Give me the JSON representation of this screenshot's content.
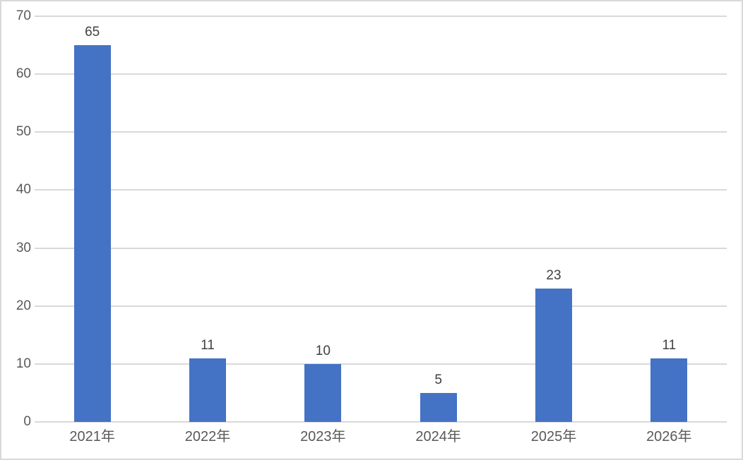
{
  "chart_data": {
    "type": "bar",
    "categories": [
      "2021年",
      "2022年",
      "2023年",
      "2024年",
      "2025年",
      "2026年"
    ],
    "values": [
      65,
      11,
      10,
      5,
      23,
      11
    ],
    "data_labels": [
      "65",
      "11",
      "10",
      "5",
      "23",
      "11"
    ],
    "title": "",
    "xlabel": "",
    "ylabel": "",
    "ylim": [
      0,
      70
    ],
    "yticks": [
      0,
      10,
      20,
      30,
      40,
      50,
      60,
      70
    ],
    "grid": true,
    "legend": false,
    "data_labels_visible": true,
    "colors": {
      "bar": "#4472C4",
      "gridline": "#D9D9D9",
      "axis_label": "#595959",
      "data_label": "#404040",
      "background": "#FFFFFF",
      "frame_border": "#D9D9D9"
    }
  }
}
